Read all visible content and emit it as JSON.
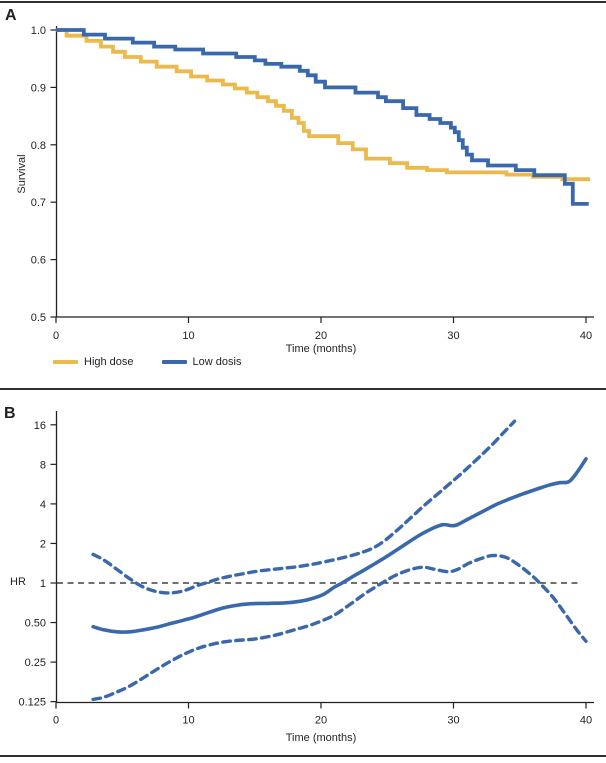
{
  "figure": {
    "panel_a_label": "A",
    "panel_b_label": "B",
    "colors": {
      "high_dose": "#EBB94C",
      "low_dose": "#3A68AD",
      "axis": "#231F20",
      "reference_line": "#1A1A1A",
      "rule": "#2F2F2F"
    }
  },
  "panel_a": {
    "label": "A",
    "ylabel": "Survival",
    "xlabel": "Time (months)",
    "legend": [
      {
        "label": "High dose",
        "color": "#EBB94C"
      },
      {
        "label": "Low dosis",
        "color": "#3A68AD"
      }
    ]
  },
  "panel_b": {
    "label": "B",
    "ylabel": "HR",
    "xlabel": "Time (months)"
  },
  "chart_data": [
    {
      "type": "line",
      "subtype": "kaplan-meier-step",
      "title": "Panel A: survival curves by dose group",
      "xlabel": "Time (months)",
      "ylabel": "Survival",
      "xlim": [
        0,
        40
      ],
      "ylim": [
        0.5,
        1.0
      ],
      "xticks": [
        0,
        10,
        20,
        30,
        40
      ],
      "yticks": [
        1.0,
        0.9,
        0.8,
        0.7,
        0.6,
        0.5
      ],
      "ytick_labels": [
        "1.0",
        "0.9",
        "0.8",
        "0.7",
        "0.6",
        "0.5"
      ],
      "grid": false,
      "legend_position": "below-left",
      "series": [
        {
          "name": "High dose",
          "color": "#EBB94C",
          "step": true,
          "points": [
            [
              0,
              1.0
            ],
            [
              0.8,
              0.99
            ],
            [
              2.3,
              0.981
            ],
            [
              3.4,
              0.971
            ],
            [
              4.3,
              0.962
            ],
            [
              5.2,
              0.953
            ],
            [
              6.4,
              0.945
            ],
            [
              7.6,
              0.936
            ],
            [
              9.1,
              0.928
            ],
            [
              10.2,
              0.919
            ],
            [
              11.4,
              0.912
            ],
            [
              12.6,
              0.905
            ],
            [
              13.5,
              0.898
            ],
            [
              14.4,
              0.891
            ],
            [
              15.2,
              0.883
            ],
            [
              16.0,
              0.876
            ],
            [
              16.6,
              0.868
            ],
            [
              17.2,
              0.859
            ],
            [
              17.8,
              0.847
            ],
            [
              18.3,
              0.838
            ],
            [
              18.7,
              0.824
            ],
            [
              19.1,
              0.815
            ],
            [
              21.3,
              0.803
            ],
            [
              22.4,
              0.792
            ],
            [
              23.4,
              0.776
            ],
            [
              25.2,
              0.768
            ],
            [
              26.5,
              0.76
            ],
            [
              28.0,
              0.756
            ],
            [
              29.5,
              0.752
            ],
            [
              34.0,
              0.748
            ],
            [
              36.0,
              0.744
            ],
            [
              38.2,
              0.74
            ],
            [
              40.3,
              0.74
            ]
          ]
        },
        {
          "name": "Low dosis",
          "color": "#3A68AD",
          "step": true,
          "points": [
            [
              0,
              1.0
            ],
            [
              2.1,
              0.992
            ],
            [
              3.7,
              0.985
            ],
            [
              5.8,
              0.978
            ],
            [
              7.4,
              0.971
            ],
            [
              9.0,
              0.966
            ],
            [
              11.1,
              0.959
            ],
            [
              13.6,
              0.953
            ],
            [
              15.0,
              0.947
            ],
            [
              15.8,
              0.941
            ],
            [
              17.0,
              0.936
            ],
            [
              18.4,
              0.929
            ],
            [
              19.0,
              0.921
            ],
            [
              19.6,
              0.91
            ],
            [
              20.3,
              0.9
            ],
            [
              22.6,
              0.891
            ],
            [
              24.3,
              0.883
            ],
            [
              24.9,
              0.876
            ],
            [
              26.2,
              0.864
            ],
            [
              27.2,
              0.852
            ],
            [
              28.2,
              0.845
            ],
            [
              29.0,
              0.838
            ],
            [
              29.8,
              0.83
            ],
            [
              30.1,
              0.822
            ],
            [
              30.4,
              0.808
            ],
            [
              30.7,
              0.795
            ],
            [
              31.0,
              0.783
            ],
            [
              31.4,
              0.773
            ],
            [
              32.6,
              0.764
            ],
            [
              34.7,
              0.756
            ],
            [
              36.1,
              0.747
            ],
            [
              38.4,
              0.732
            ],
            [
              39.0,
              0.697
            ],
            [
              40.2,
              0.697
            ]
          ]
        }
      ]
    },
    {
      "type": "line",
      "subtype": "smoothed-hazard-ratio",
      "title": "Panel B: hazard ratio over time with 95% CI",
      "xlabel": "Time (months)",
      "ylabel": "HR",
      "xlim": [
        0,
        40
      ],
      "yscale": "log2",
      "ylim": [
        0.125,
        16
      ],
      "xticks": [
        0,
        10,
        20,
        30,
        40
      ],
      "yticks": [
        16,
        8,
        4,
        2,
        1,
        0.5,
        0.25,
        0.125
      ],
      "ytick_labels": [
        "16",
        "8",
        "4",
        "2",
        "1",
        "0.50",
        "0.25",
        "0.125"
      ],
      "reference_line_y": 1,
      "grid": false,
      "series": [
        {
          "name": "HR",
          "style": "solid",
          "color": "#3A68AD",
          "points": [
            [
              2.8,
              0.465
            ],
            [
              3.6,
              0.44
            ],
            [
              4.6,
              0.425
            ],
            [
              5.6,
              0.425
            ],
            [
              6.6,
              0.44
            ],
            [
              7.6,
              0.46
            ],
            [
              8.6,
              0.49
            ],
            [
              9.6,
              0.52
            ],
            [
              10.6,
              0.555
            ],
            [
              11.6,
              0.6
            ],
            [
              12.6,
              0.645
            ],
            [
              13.6,
              0.675
            ],
            [
              14.6,
              0.695
            ],
            [
              16,
              0.7
            ],
            [
              17.2,
              0.705
            ],
            [
              18.2,
              0.72
            ],
            [
              19.2,
              0.755
            ],
            [
              20.2,
              0.82
            ],
            [
              21.0,
              0.93
            ],
            [
              21.6,
              1.0
            ],
            [
              22.4,
              1.12
            ],
            [
              23.4,
              1.28
            ],
            [
              24.4,
              1.47
            ],
            [
              25.4,
              1.7
            ],
            [
              26.4,
              1.98
            ],
            [
              27.4,
              2.3
            ],
            [
              28.4,
              2.6
            ],
            [
              29.2,
              2.78
            ],
            [
              29.9,
              2.73
            ],
            [
              30.3,
              2.78
            ],
            [
              31.2,
              3.1
            ],
            [
              32.2,
              3.5
            ],
            [
              33.2,
              3.95
            ],
            [
              34.2,
              4.35
            ],
            [
              35.2,
              4.75
            ],
            [
              36.2,
              5.15
            ],
            [
              37.2,
              5.55
            ],
            [
              38.0,
              5.8
            ],
            [
              38.7,
              5.9
            ],
            [
              39.3,
              6.9
            ],
            [
              40.0,
              8.8
            ]
          ]
        },
        {
          "name": "Upper 95% CI",
          "style": "dashed",
          "color": "#3A68AD",
          "points": [
            [
              2.8,
              1.65
            ],
            [
              3.6,
              1.5
            ],
            [
              4.6,
              1.27
            ],
            [
              5.6,
              1.07
            ],
            [
              6.6,
              0.93
            ],
            [
              7.6,
              0.86
            ],
            [
              8.6,
              0.84
            ],
            [
              9.6,
              0.87
            ],
            [
              10.6,
              0.95
            ],
            [
              11.3,
              1.0
            ],
            [
              12.2,
              1.07
            ],
            [
              13.2,
              1.13
            ],
            [
              14.2,
              1.18
            ],
            [
              15.2,
              1.23
            ],
            [
              16.7,
              1.28
            ],
            [
              18.2,
              1.33
            ],
            [
              19.7,
              1.41
            ],
            [
              21.2,
              1.52
            ],
            [
              22.6,
              1.65
            ],
            [
              23.8,
              1.82
            ],
            [
              24.8,
              2.1
            ],
            [
              25.8,
              2.55
            ],
            [
              26.8,
              3.15
            ],
            [
              27.8,
              3.9
            ],
            [
              28.8,
              4.75
            ],
            [
              29.8,
              5.8
            ],
            [
              30.8,
              7.1
            ],
            [
              31.8,
              8.8
            ],
            [
              32.8,
              11.0
            ],
            [
              33.8,
              14.0
            ],
            [
              34.6,
              17.0
            ]
          ]
        },
        {
          "name": "Lower 95% CI",
          "style": "dashed",
          "color": "#3A68AD",
          "points": [
            [
              2.8,
              0.13
            ],
            [
              3.6,
              0.135
            ],
            [
              4.6,
              0.148
            ],
            [
              5.6,
              0.165
            ],
            [
              6.6,
              0.19
            ],
            [
              7.6,
              0.22
            ],
            [
              8.6,
              0.252
            ],
            [
              9.6,
              0.285
            ],
            [
              10.6,
              0.315
            ],
            [
              11.6,
              0.338
            ],
            [
              12.6,
              0.355
            ],
            [
              13.6,
              0.365
            ],
            [
              15,
              0.375
            ],
            [
              16.5,
              0.4
            ],
            [
              18,
              0.44
            ],
            [
              19.5,
              0.49
            ],
            [
              21,
              0.57
            ],
            [
              22.3,
              0.7
            ],
            [
              23.4,
              0.84
            ],
            [
              24.6,
              1.0
            ],
            [
              25.6,
              1.14
            ],
            [
              26.7,
              1.26
            ],
            [
              27.7,
              1.32
            ],
            [
              28.6,
              1.27
            ],
            [
              29.6,
              1.22
            ],
            [
              30.3,
              1.27
            ],
            [
              31.2,
              1.42
            ],
            [
              32.2,
              1.55
            ],
            [
              33.0,
              1.62
            ],
            [
              34.0,
              1.56
            ],
            [
              35.0,
              1.35
            ],
            [
              36.0,
              1.12
            ],
            [
              36.5,
              1.0
            ],
            [
              37.5,
              0.78
            ],
            [
              38.5,
              0.57
            ],
            [
              39.3,
              0.44
            ],
            [
              40.0,
              0.36
            ]
          ]
        }
      ]
    }
  ]
}
